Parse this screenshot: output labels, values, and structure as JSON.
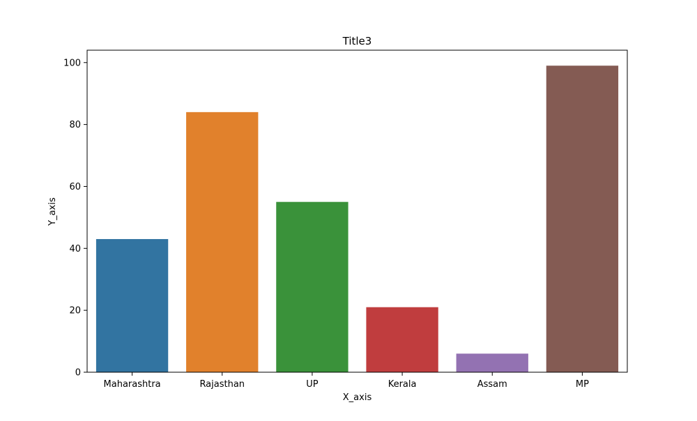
{
  "chart_data": {
    "type": "bar",
    "title": "Title3",
    "xlabel": "X_axis",
    "ylabel": "Y_axis",
    "categories": [
      "Maharashtra",
      "Rajasthan",
      "UP",
      "Kerala",
      "Assam",
      "MP"
    ],
    "values": [
      43,
      84,
      55,
      21,
      6,
      99
    ],
    "colors": [
      "#3274a1",
      "#e1812c",
      "#3a923a",
      "#c03d3e",
      "#9372b2",
      "#845b53"
    ],
    "ylim": [
      0,
      104
    ],
    "yticks": [
      0,
      20,
      40,
      60,
      80,
      100
    ],
    "grid": false,
    "legend": "none"
  }
}
